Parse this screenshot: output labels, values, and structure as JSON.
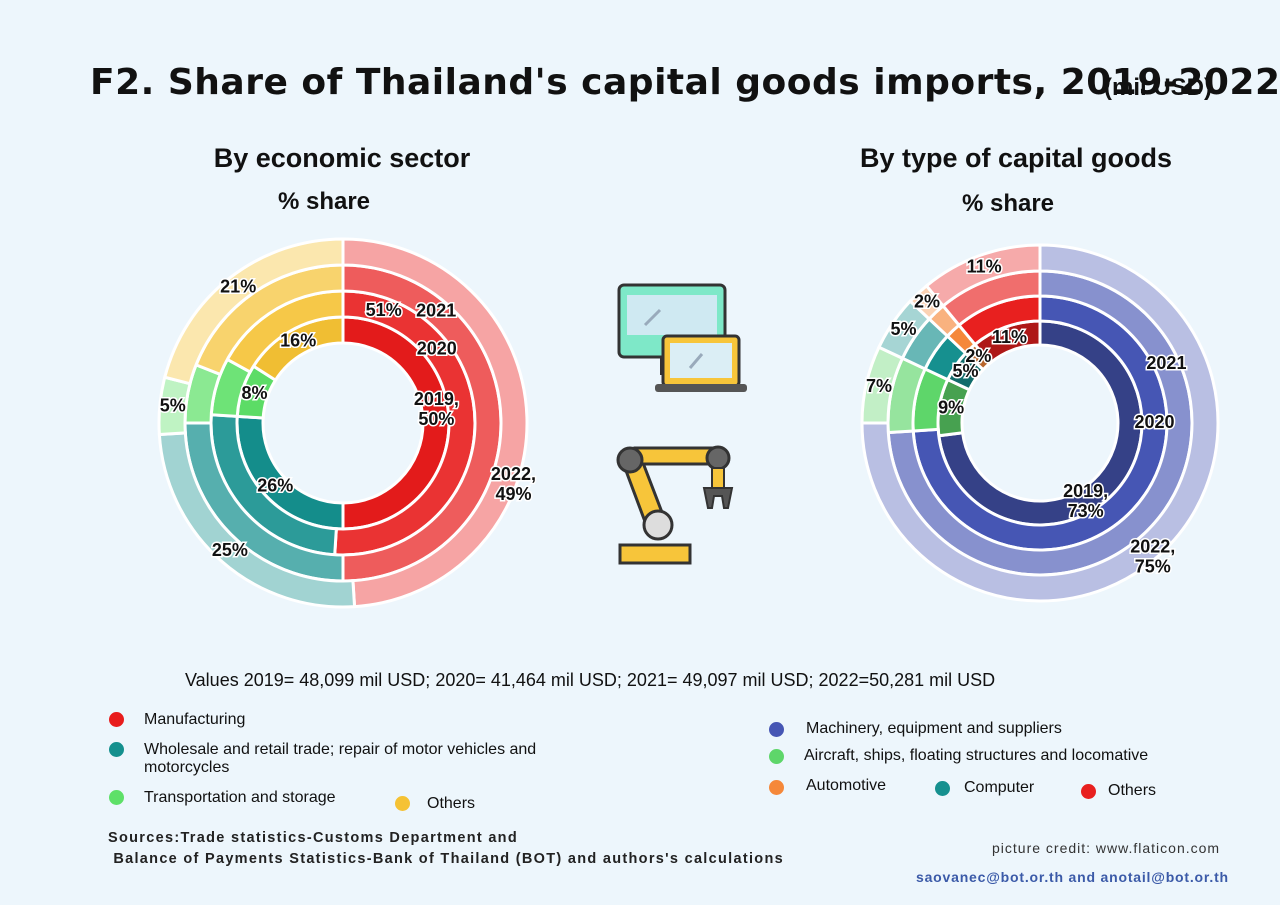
{
  "title": "F2. Share of Thailand's capital goods imports, 2019-2022",
  "unit": "(mil USD)",
  "chart_data": [
    {
      "type": "pie",
      "title": "By economic sector",
      "subtitle": "% share",
      "categories": [
        "Manufacturing",
        "Wholesale and retail trade; repair of motor vehicles and motorcycles",
        "Transportation and storage",
        "Others"
      ],
      "colors": [
        "#e81c1c",
        "#14908e",
        "#5ee068",
        "#f5c234"
      ],
      "series": [
        {
          "name": "2019,\n50%",
          "values": [
            50,
            26,
            8,
            16
          ],
          "value_labels": [
            null,
            "26%",
            "8%",
            "16%"
          ]
        },
        {
          "name": "2020",
          "values": [
            51,
            25,
            7,
            17
          ],
          "value_labels": [
            "51%",
            null,
            null,
            null
          ]
        },
        {
          "name": "2021",
          "values": [
            50,
            25,
            6,
            19
          ],
          "value_labels": [
            null,
            null,
            null,
            null
          ]
        },
        {
          "name": "2022,\n49%",
          "values": [
            49,
            25,
            5,
            21
          ],
          "value_labels": [
            null,
            "25%",
            "5%",
            "21%"
          ]
        }
      ]
    },
    {
      "type": "pie",
      "title": "By type of capital goods",
      "subtitle": "% share",
      "categories": [
        "Machinery, equipment and suppliers",
        "Aircraft, ships, floating structures and locomative",
        "Computer",
        "Automotive",
        "Others"
      ],
      "colors": [
        "#4656b4",
        "#5ed66a",
        "#16908f",
        "#f5883a",
        "#e8201f"
      ],
      "series": [
        {
          "name": "2019,\n73%",
          "values": [
            73,
            9,
            5,
            2,
            11
          ],
          "value_labels": [
            null,
            "9%",
            "5%",
            "2%",
            "11%"
          ]
        },
        {
          "name": "2020",
          "values": [
            74,
            8,
            5,
            2,
            11
          ],
          "value_labels": [
            null,
            null,
            null,
            null,
            null
          ]
        },
        {
          "name": "2021",
          "values": [
            74,
            8,
            5,
            2,
            11
          ],
          "value_labels": [
            null,
            null,
            null,
            null,
            null
          ]
        },
        {
          "name": "2022,\n75%",
          "values": [
            75,
            7,
            5,
            2,
            11
          ],
          "value_labels": [
            null,
            "7%",
            "5%",
            "2%",
            "11%"
          ]
        }
      ]
    }
  ],
  "values_note": "Values 2019= 48,099 mil USD;  2020= 41,464 mil USD;  2021= 49,097 mil USD;  2022=50,281 mil USD",
  "sources": "Sources:Trade statistics-Customs Department and\n Balance of Payments Statistics-Bank of Thailand (BOT) and authors's calculations",
  "credit": "picture credit: www.flaticon.com",
  "contacts": "saovanec@bot.or.th and anotail@bot.or.th"
}
